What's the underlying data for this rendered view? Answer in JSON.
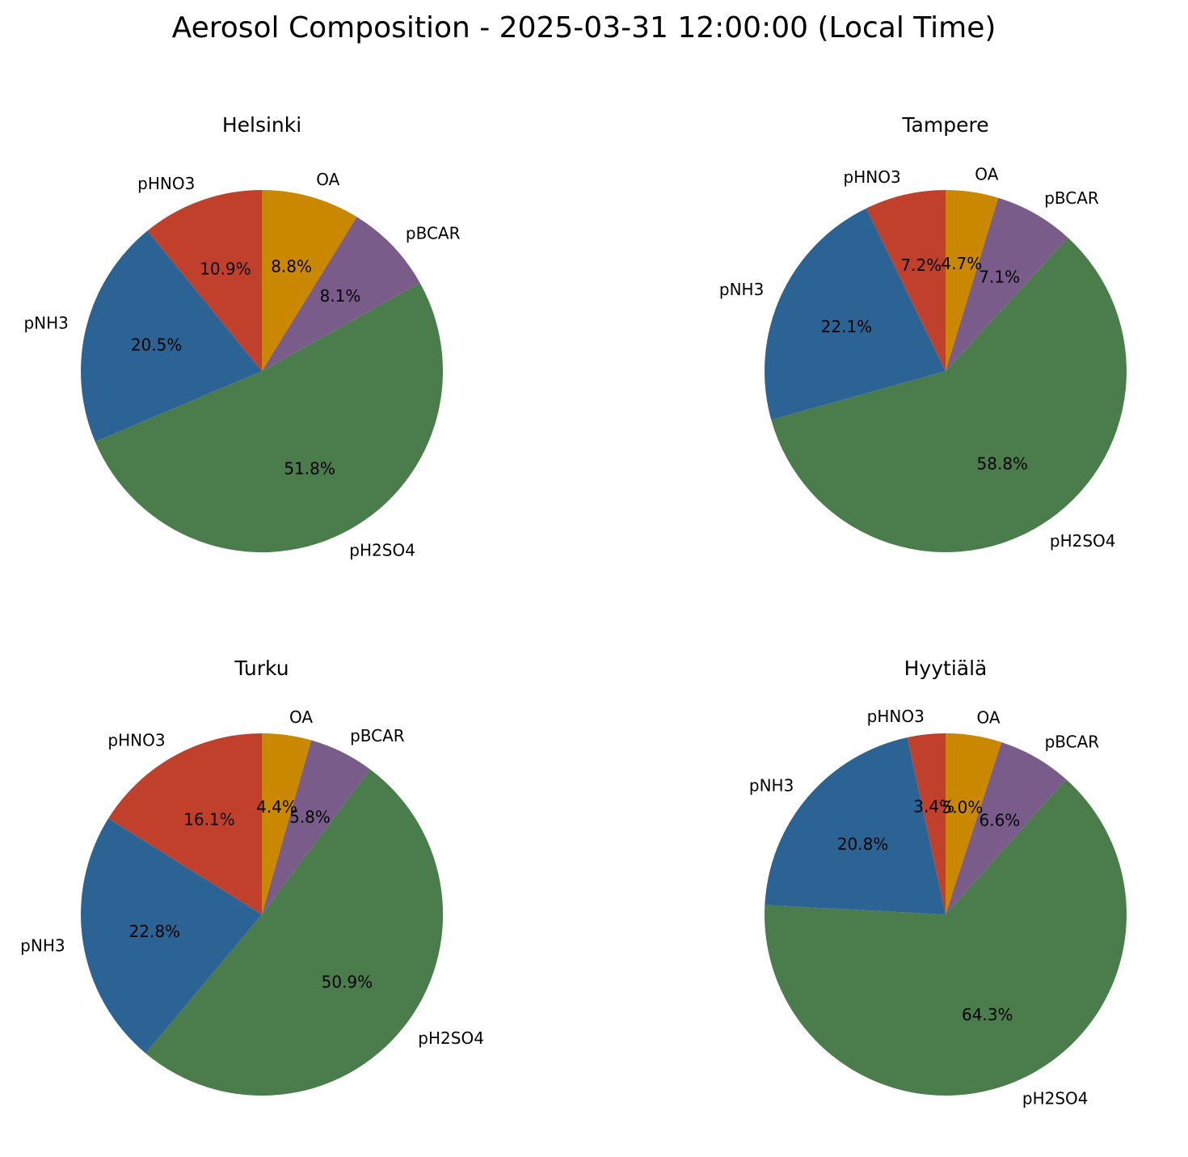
{
  "title": "Aerosol Composition - 2025-03-31 12:00:00 (Local Time)",
  "colors": {
    "OA": "#c98800",
    "pBCAR": "#7a5c8a",
    "pH2SO4": "#4a7c4c",
    "pNH3": "#2b6494",
    "pHNO3": "#c0402c"
  },
  "chart_data": [
    {
      "type": "pie",
      "title": "Helsinki",
      "categories": [
        "OA",
        "pBCAR",
        "pH2SO4",
        "pNH3",
        "pHNO3"
      ],
      "values": [
        8.8,
        8.1,
        51.8,
        20.5,
        10.9
      ],
      "value_labels": [
        "8.8%",
        "8.1%",
        "51.8%",
        "20.5%",
        "10.9%"
      ],
      "start_angle": 90,
      "direction": "clockwise"
    },
    {
      "type": "pie",
      "title": "Tampere",
      "categories": [
        "OA",
        "pBCAR",
        "pH2SO4",
        "pNH3",
        "pHNO3"
      ],
      "values": [
        4.7,
        7.1,
        58.8,
        22.1,
        7.2
      ],
      "value_labels": [
        "4.7%",
        "7.1%",
        "58.8%",
        "22.1%",
        "7.2%"
      ],
      "start_angle": 90,
      "direction": "clockwise"
    },
    {
      "type": "pie",
      "title": "Turku",
      "categories": [
        "OA",
        "pBCAR",
        "pH2SO4",
        "pNH3",
        "pHNO3"
      ],
      "values": [
        4.4,
        5.8,
        50.9,
        22.8,
        16.1
      ],
      "value_labels": [
        "4.4%",
        "5.8%",
        "50.9%",
        "22.8%",
        "16.1%"
      ],
      "start_angle": 90,
      "direction": "clockwise"
    },
    {
      "type": "pie",
      "title": "Hyytiälä",
      "categories": [
        "OA",
        "pBCAR",
        "pH2SO4",
        "pNH3",
        "pHNO3"
      ],
      "values": [
        5.0,
        6.6,
        64.3,
        20.8,
        3.4
      ],
      "value_labels": [
        "5.0%",
        "6.6%",
        "64.3%",
        "20.8%",
        "3.4%"
      ],
      "start_angle": 90,
      "direction": "clockwise"
    }
  ]
}
